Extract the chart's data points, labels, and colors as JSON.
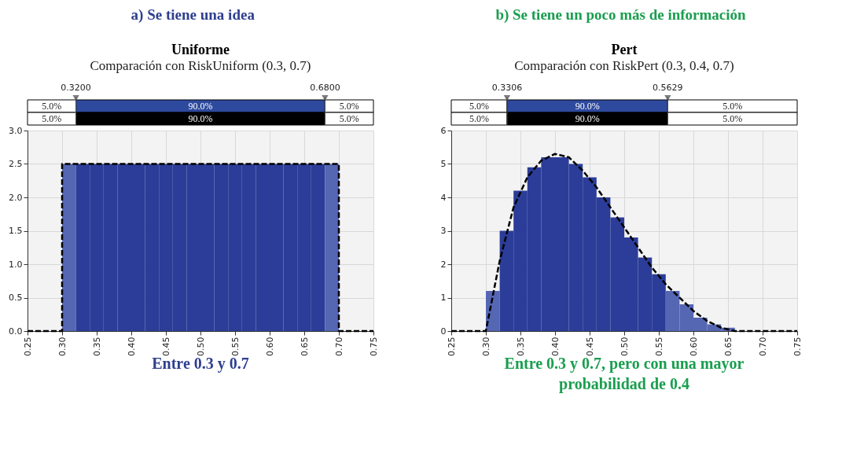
{
  "chart_data": [
    {
      "type": "histogram",
      "title": "Uniforme",
      "subtitle": "Comparación con RiskUniform (0.3, 0.7)",
      "annotations": [
        "a) Se tiene una idea",
        "Entre 0.3 y 0.7",
        "5.0%",
        "90.0%",
        "5.0%",
        "5.0%",
        "90.0%",
        "5.0%"
      ],
      "bins": [
        0.3,
        0.32,
        0.34,
        0.36,
        0.38,
        0.4,
        0.42,
        0.44,
        0.46,
        0.48,
        0.5,
        0.52,
        0.54,
        0.56,
        0.58,
        0.6,
        0.62,
        0.64,
        0.66,
        0.68,
        0.7
      ],
      "values": [
        2.5,
        2.5,
        2.5,
        2.5,
        2.5,
        2.5,
        2.5,
        2.5,
        2.5,
        2.5,
        2.5,
        2.5,
        2.5,
        2.5,
        2.5,
        2.5,
        2.5,
        2.5,
        2.5,
        2.5
      ],
      "colors": [
        "#5566b3",
        "#2b3d98",
        "#2b3d98",
        "#2b3d98",
        "#2b3d98",
        "#2b3d98",
        "#2b3d98",
        "#2b3d98",
        "#2b3d98",
        "#2b3d98",
        "#2b3d98",
        "#2b3d98",
        "#2b3d98",
        "#2b3d98",
        "#2b3d98",
        "#2b3d98",
        "#2b3d98",
        "#2b3d98",
        "#2b3d98",
        "#5566b3"
      ],
      "series": [
        {
          "type": "line",
          "color": "#000000",
          "x": [
            0.25,
            0.3,
            0.3,
            0.7,
            0.7,
            0.75
          ],
          "values": [
            0,
            0,
            2.5,
            2.5,
            0,
            0
          ]
        }
      ],
      "line_style": "dashed",
      "ref_lines": [
        {
          "axis": "x",
          "value": 0.32,
          "label": "0.3200"
        },
        {
          "axis": "x",
          "value": 0.68,
          "label": "0.6800"
        }
      ],
      "xlim": [
        0.25,
        0.75
      ],
      "xticks": [
        0.25,
        {
          "value": 0.3,
          "label": "0.30"
        },
        0.35,
        {
          "value": 0.4,
          "label": "0.40"
        },
        0.45,
        {
          "value": 0.5,
          "label": "0.50"
        },
        0.55,
        {
          "value": 0.6,
          "label": "0.60"
        },
        0.65,
        {
          "value": 0.7,
          "label": "0.70"
        },
        0.75
      ],
      "ylim": [
        0,
        3
      ],
      "yticks": [
        {
          "value": 0,
          "label": "0.0"
        },
        0.5,
        {
          "value": 1,
          "label": "1.0"
        },
        1.5,
        {
          "value": 2,
          "label": "2.0"
        },
        2.5,
        {
          "value": 3,
          "label": "3.0"
        }
      ],
      "grid": true
    },
    {
      "type": "histogram",
      "title": "Pert",
      "subtitle": "Comparación con RiskPert (0.3, 0.4, 0.7)",
      "annotations": [
        "b) Se tiene un poco más de información",
        "Entre 0.3 y 0.7, pero con una mayor probabilidad de 0.4",
        "5.0%",
        "90.0%",
        "5.0%",
        "5.0%",
        "90.0%",
        "5.0%"
      ],
      "bins": [
        0.3,
        0.32,
        0.34,
        0.36,
        0.38,
        0.4,
        0.42,
        0.44,
        0.46,
        0.48,
        0.5,
        0.52,
        0.54,
        0.56,
        0.58,
        0.6,
        0.62,
        0.64,
        0.66,
        0.68,
        0.7
      ],
      "values": [
        1.2,
        3.0,
        4.2,
        4.9,
        5.2,
        5.2,
        5.0,
        4.6,
        4.0,
        3.4,
        2.8,
        2.2,
        1.7,
        1.2,
        0.8,
        0.4,
        0.2,
        0.1,
        0.0,
        0.0
      ],
      "colors": [
        "#5566b3",
        "#2b3d98",
        "#2b3d98",
        "#2b3d98",
        "#2b3d98",
        "#2b3d98",
        "#2b3d98",
        "#2b3d98",
        "#2b3d98",
        "#2b3d98",
        "#2b3d98",
        "#2b3d98",
        "#2b3d98",
        "#5566b3",
        "#5566b3",
        "#5566b3",
        "#5566b3",
        "#5566b3",
        "#5566b3",
        "#5566b3"
      ],
      "series": [
        {
          "type": "line",
          "color": "#000000",
          "x": [
            0.25,
            0.3,
            0.32,
            0.34,
            0.36,
            0.38,
            0.4,
            0.42,
            0.44,
            0.46,
            0.48,
            0.5,
            0.52,
            0.54,
            0.56,
            0.58,
            0.6,
            0.62,
            0.64,
            0.66,
            0.68,
            0.7,
            0.75
          ],
          "values": [
            0,
            0,
            2.1,
            3.7,
            4.6,
            5.1,
            5.3,
            5.2,
            4.8,
            4.3,
            3.7,
            3.1,
            2.5,
            1.9,
            1.4,
            1.0,
            0.6,
            0.3,
            0.1,
            0.0,
            0.0,
            0,
            0
          ]
        }
      ],
      "line_style": "dashed",
      "ref_lines": [
        {
          "axis": "x",
          "value": 0.3306,
          "label": "0.3306"
        },
        {
          "axis": "x",
          "value": 0.5629,
          "label": "0.5629"
        }
      ],
      "xlim": [
        0.25,
        0.75
      ],
      "xticks": [
        0.25,
        {
          "value": 0.3,
          "label": "0.30"
        },
        0.35,
        {
          "value": 0.4,
          "label": "0.40"
        },
        0.45,
        {
          "value": 0.5,
          "label": "0.50"
        },
        0.55,
        {
          "value": 0.6,
          "label": "0.60"
        },
        0.65,
        {
          "value": 0.7,
          "label": "0.70"
        },
        0.75
      ],
      "ylim": [
        0,
        6
      ],
      "yticks": [
        0,
        1,
        2,
        3,
        4,
        5,
        6
      ],
      "grid": true
    }
  ]
}
